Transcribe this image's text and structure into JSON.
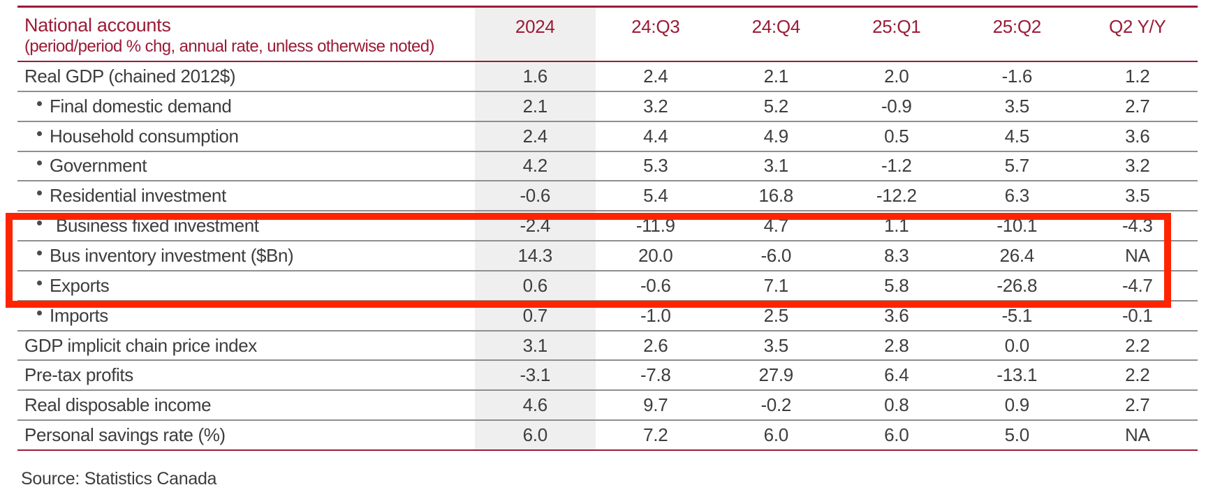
{
  "colors": {
    "accent_maroon": "#9b1b36",
    "highlight_red": "#ff2400",
    "shaded_column_bg": "#f0efef",
    "row_separator": "#8e8e8e",
    "text": "#3d3d3d"
  },
  "table": {
    "title": "National accounts",
    "subtitle": "(period/period % chg, annual rate, unless otherwise noted)",
    "columns": [
      "2024",
      "24:Q3",
      "24:Q4",
      "25:Q1",
      "25:Q2",
      "Q2 Y/Y"
    ],
    "rows": [
      {
        "label": "Real GDP (chained 2012$)",
        "bullet": false,
        "indent": false,
        "values": [
          "1.6",
          "2.4",
          "2.1",
          "2.0",
          "-1.6",
          "1.2"
        ]
      },
      {
        "label": "Final domestic demand",
        "bullet": true,
        "indent": false,
        "values": [
          "2.1",
          "3.2",
          "5.2",
          "-0.9",
          "3.5",
          "2.7"
        ]
      },
      {
        "label": "Household consumption",
        "bullet": true,
        "indent": false,
        "values": [
          "2.4",
          "4.4",
          "4.9",
          "0.5",
          "4.5",
          "3.6"
        ]
      },
      {
        "label": "Government",
        "bullet": true,
        "indent": false,
        "values": [
          "4.2",
          "5.3",
          "3.1",
          "-1.2",
          "5.7",
          "3.2"
        ]
      },
      {
        "label": "Residential investment",
        "bullet": true,
        "indent": false,
        "values": [
          "-0.6",
          "5.4",
          "16.8",
          "-12.2",
          "6.3",
          "3.5"
        ]
      },
      {
        "label": "Business fixed investment",
        "bullet": true,
        "indent": true,
        "values": [
          "-2.4",
          "-11.9",
          "4.7",
          "1.1",
          "-10.1",
          "-4.3"
        ]
      },
      {
        "label": "Bus inventory investment ($Bn)",
        "bullet": true,
        "indent": false,
        "values": [
          "14.3",
          "20.0",
          "-6.0",
          "8.3",
          "26.4",
          "NA"
        ]
      },
      {
        "label": "Exports",
        "bullet": true,
        "indent": false,
        "values": [
          "0.6",
          "-0.6",
          "7.1",
          "5.8",
          "-26.8",
          "-4.7"
        ]
      },
      {
        "label": "Imports",
        "bullet": true,
        "indent": false,
        "values": [
          "0.7",
          "-1.0",
          "2.5",
          "3.6",
          "-5.1",
          "-0.1"
        ]
      },
      {
        "label": "GDP implicit chain price index",
        "bullet": false,
        "indent": false,
        "values": [
          "3.1",
          "2.6",
          "3.5",
          "2.8",
          "0.0",
          "2.2"
        ]
      },
      {
        "label": "Pre-tax profits",
        "bullet": false,
        "indent": false,
        "values": [
          "-3.1",
          "-7.8",
          "27.9",
          "6.4",
          "-13.1",
          "2.2"
        ]
      },
      {
        "label": "Real disposable income",
        "bullet": false,
        "indent": false,
        "values": [
          "4.6",
          "9.7",
          "-0.2",
          "0.8",
          "0.9",
          "2.7"
        ]
      },
      {
        "label": "Personal savings rate (%)",
        "bullet": false,
        "indent": false,
        "values": [
          "6.0",
          "7.2",
          "6.0",
          "6.0",
          "5.0",
          "NA"
        ]
      }
    ]
  },
  "highlight": {
    "color": "#ff2400",
    "highlighted_rows": [
      "Business fixed investment",
      "Bus inventory investment ($Bn)",
      "Exports"
    ]
  },
  "source": "Source: Statistics Canada"
}
